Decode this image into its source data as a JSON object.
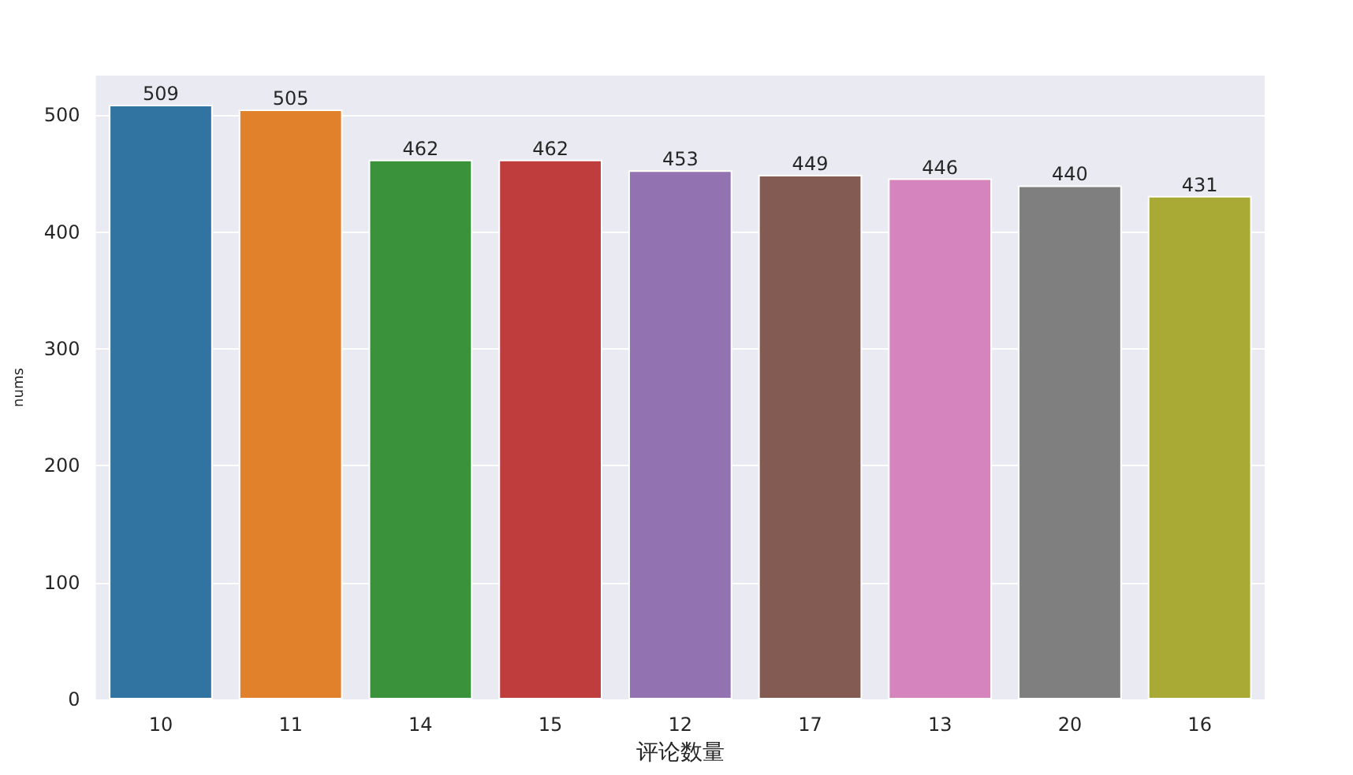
{
  "chart_data": {
    "type": "bar",
    "xlabel": "评论数量",
    "ylabel": "nums",
    "categories": [
      "10",
      "11",
      "14",
      "15",
      "12",
      "17",
      "13",
      "20",
      "16"
    ],
    "values": [
      509,
      505,
      462,
      462,
      453,
      449,
      446,
      440,
      431
    ],
    "colors": [
      "#3274a1",
      "#e1812c",
      "#3a923a",
      "#c03d3e",
      "#9372b2",
      "#845b53",
      "#d684bd",
      "#7f7f7f",
      "#a9aa35"
    ],
    "ylim": [
      0,
      534
    ],
    "yticks": [
      0,
      100,
      200,
      300,
      400,
      500
    ],
    "grid": "y",
    "data_labels": true
  }
}
